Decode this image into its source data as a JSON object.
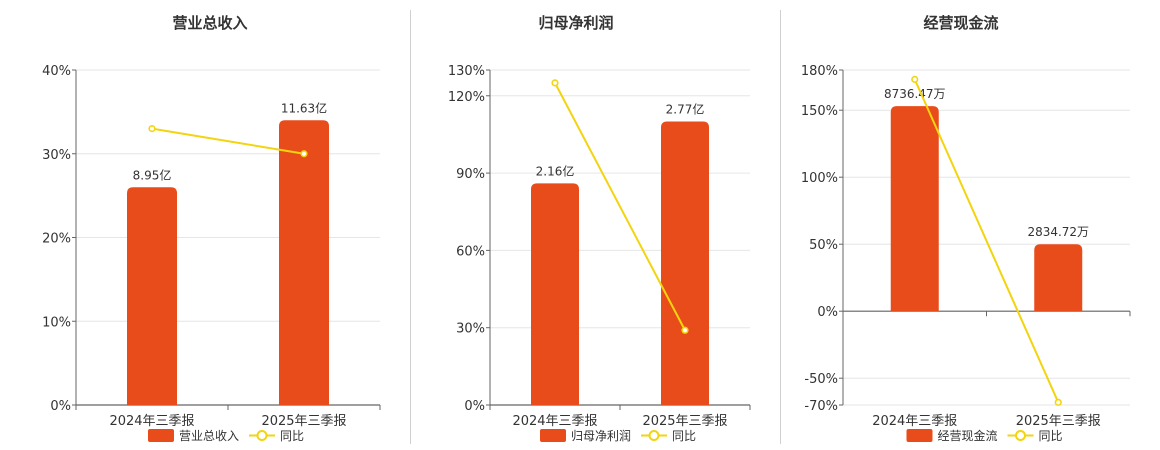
{
  "colors": {
    "bar": "#E84C1A",
    "line": "#F2D40F",
    "grid": "#e6e6e6",
    "axis": "#666666",
    "divider": "#d0d0d0"
  },
  "chart_data": [
    {
      "type": "bar",
      "title": "营业总收入",
      "categories": [
        "2024年三季报",
        "2025年三季报"
      ],
      "series": [
        {
          "name": "营业总收入",
          "type": "bar",
          "values": [
            26,
            34
          ],
          "labels": [
            "8.95亿",
            "11.63亿"
          ]
        },
        {
          "name": "同比",
          "type": "line",
          "values": [
            33,
            30
          ]
        }
      ],
      "yticks": [
        "0%",
        "10%",
        "20%",
        "30%",
        "40%"
      ],
      "ytick_values": [
        0,
        10,
        20,
        30,
        40
      ],
      "ylim": [
        0,
        40
      ],
      "legend_position": "bottom",
      "grid": true
    },
    {
      "type": "bar",
      "title": "归母净利润",
      "categories": [
        "2024年三季报",
        "2025年三季报"
      ],
      "series": [
        {
          "name": "归母净利润",
          "type": "bar",
          "values": [
            86,
            110
          ],
          "labels": [
            "2.16亿",
            "2.77亿"
          ]
        },
        {
          "name": "同比",
          "type": "line",
          "values": [
            125,
            29
          ]
        }
      ],
      "yticks": [
        "0%",
        "30%",
        "60%",
        "90%",
        "120%",
        "130%"
      ],
      "ytick_values": [
        0,
        30,
        60,
        90,
        120,
        130
      ],
      "ylim": [
        0,
        130
      ],
      "legend_position": "bottom",
      "grid": true
    },
    {
      "type": "bar",
      "title": "经营现金流",
      "categories": [
        "2024年三季报",
        "2025年三季报"
      ],
      "series": [
        {
          "name": "经营现金流",
          "type": "bar",
          "values": [
            153,
            50
          ],
          "labels": [
            "8736.47万",
            "2834.72万"
          ]
        },
        {
          "name": "同比",
          "type": "line",
          "values": [
            173,
            -68
          ]
        }
      ],
      "yticks": [
        "-70%",
        "-50%",
        "0%",
        "50%",
        "100%",
        "150%",
        "180%"
      ],
      "ytick_values": [
        -70,
        -50,
        0,
        50,
        100,
        150,
        180
      ],
      "ylim": [
        -70,
        180
      ],
      "legend_position": "bottom",
      "grid": true
    }
  ]
}
